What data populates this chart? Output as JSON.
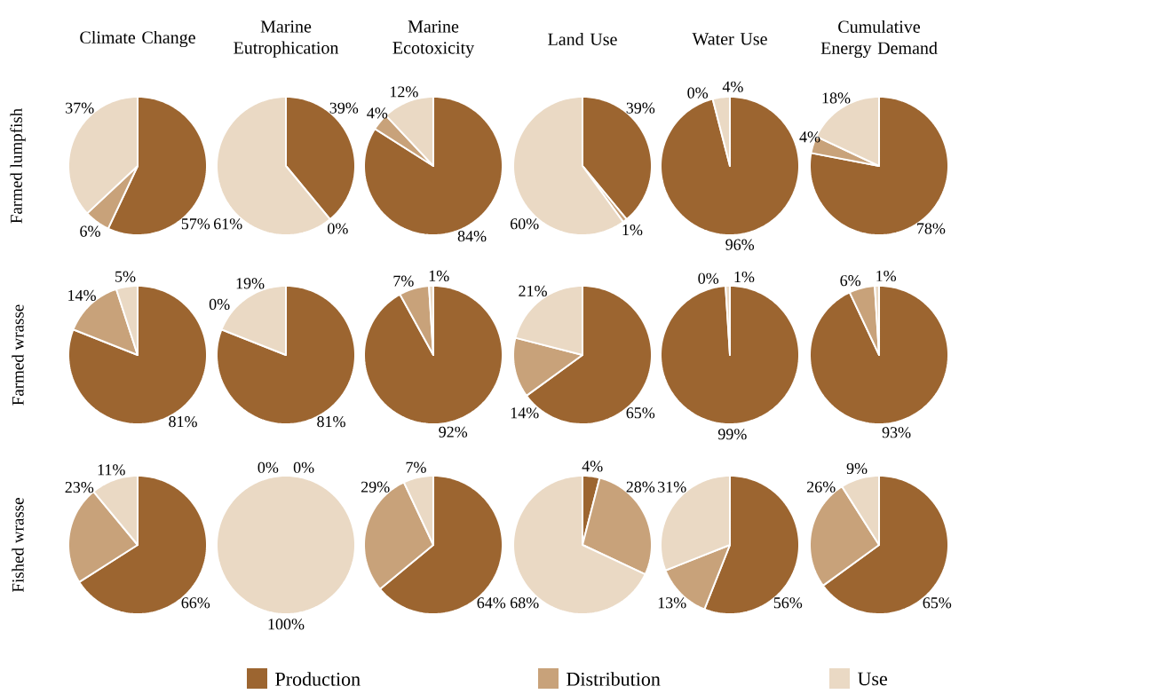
{
  "chart_data": [
    {
      "type": "pie",
      "title": "Climate Change",
      "ylabel": "Farmed lumpfish",
      "values": [
        57,
        6,
        37
      ],
      "value_labels": [
        "57%",
        "6%",
        "37%"
      ],
      "colors": [
        "#9c6530",
        "#c8a27a",
        "#ead9c4"
      ]
    },
    {
      "type": "pie",
      "title": "Marine Eutrophication",
      "values": [
        39,
        0,
        61
      ],
      "value_labels": [
        "39%",
        "0%",
        "61%"
      ],
      "colors": [
        "#9c6530",
        "#c8a27a",
        "#ead9c4"
      ]
    },
    {
      "type": "pie",
      "title": "Marine Ecotoxicity",
      "values": [
        84,
        4,
        12
      ],
      "value_labels": [
        "84%",
        "4%",
        "12%"
      ],
      "colors": [
        "#9c6530",
        "#c8a27a",
        "#ead9c4"
      ]
    },
    {
      "type": "pie",
      "title": "Land Use",
      "values": [
        39,
        1,
        60
      ],
      "value_labels": [
        "39%",
        "1%",
        "60%"
      ],
      "colors": [
        "#9c6530",
        "#c8a27a",
        "#ead9c4"
      ]
    },
    {
      "type": "pie",
      "title": "Water Use",
      "values": [
        96,
        0,
        4
      ],
      "value_labels": [
        "96%",
        "0%",
        "4%"
      ],
      "colors": [
        "#9c6530",
        "#c8a27a",
        "#ead9c4"
      ]
    },
    {
      "type": "pie",
      "title": "Cumulative Energy Demand",
      "values": [
        78,
        4,
        18
      ],
      "value_labels": [
        "78%",
        "4%",
        "18%"
      ],
      "colors": [
        "#9c6530",
        "#c8a27a",
        "#ead9c4"
      ]
    },
    {
      "type": "pie",
      "ylabel": "Farmed wrasse",
      "values": [
        81,
        14,
        5
      ],
      "value_labels": [
        "81%",
        "14%",
        "5%"
      ],
      "colors": [
        "#9c6530",
        "#c8a27a",
        "#ead9c4"
      ]
    },
    {
      "type": "pie",
      "values": [
        81,
        0,
        19
      ],
      "value_labels": [
        "81%",
        "0%",
        "19%"
      ],
      "colors": [
        "#9c6530",
        "#c8a27a",
        "#ead9c4"
      ]
    },
    {
      "type": "pie",
      "values": [
        92,
        7,
        1
      ],
      "value_labels": [
        "92%",
        "7%",
        "1%"
      ],
      "colors": [
        "#9c6530",
        "#c8a27a",
        "#ead9c4"
      ]
    },
    {
      "type": "pie",
      "values": [
        65,
        14,
        21
      ],
      "value_labels": [
        "65%",
        "14%",
        "21%"
      ],
      "colors": [
        "#9c6530",
        "#c8a27a",
        "#ead9c4"
      ]
    },
    {
      "type": "pie",
      "values": [
        99,
        0,
        1
      ],
      "value_labels": [
        "99%",
        "0%",
        "1%"
      ],
      "colors": [
        "#9c6530",
        "#c8a27a",
        "#ead9c4"
      ]
    },
    {
      "type": "pie",
      "values": [
        93,
        6,
        1
      ],
      "value_labels": [
        "93%",
        "6%",
        "1%"
      ],
      "colors": [
        "#9c6530",
        "#c8a27a",
        "#ead9c4"
      ]
    },
    {
      "type": "pie",
      "ylabel": "Fished wrasse",
      "values": [
        66,
        23,
        11
      ],
      "value_labels": [
        "66%",
        "23%",
        "11%"
      ],
      "colors": [
        "#9c6530",
        "#c8a27a",
        "#ead9c4"
      ]
    },
    {
      "type": "pie",
      "legend": "bottom",
      "categories": [
        "Production",
        "Distribution",
        "Use"
      ],
      "values": [
        0,
        0,
        100
      ],
      "value_labels": [
        "0%",
        "0%",
        "100%"
      ],
      "colors": [
        "#9c6530",
        "#c8a27a",
        "#ead9c4"
      ]
    },
    {
      "type": "pie",
      "values": [
        64,
        29,
        7
      ],
      "value_labels": [
        "64%",
        "29%",
        "7%"
      ],
      "colors": [
        "#9c6530",
        "#c8a27a",
        "#ead9c4"
      ]
    },
    {
      "type": "pie",
      "values": [
        4,
        28,
        68
      ],
      "value_labels": [
        "4%",
        "28%",
        "68%"
      ],
      "colors": [
        "#9c6530",
        "#c8a27a",
        "#ead9c4"
      ]
    },
    {
      "type": "pie",
      "values": [
        56,
        13,
        31
      ],
      "value_labels": [
        "56%",
        "13%",
        "31%"
      ],
      "colors": [
        "#9c6530",
        "#c8a27a",
        "#ead9c4"
      ]
    },
    {
      "type": "pie",
      "values": [
        65,
        26,
        9
      ],
      "value_labels": [
        "65%",
        "26%",
        "9%"
      ],
      "colors": [
        "#9c6530",
        "#c8a27a",
        "#ead9c4"
      ]
    }
  ]
}
